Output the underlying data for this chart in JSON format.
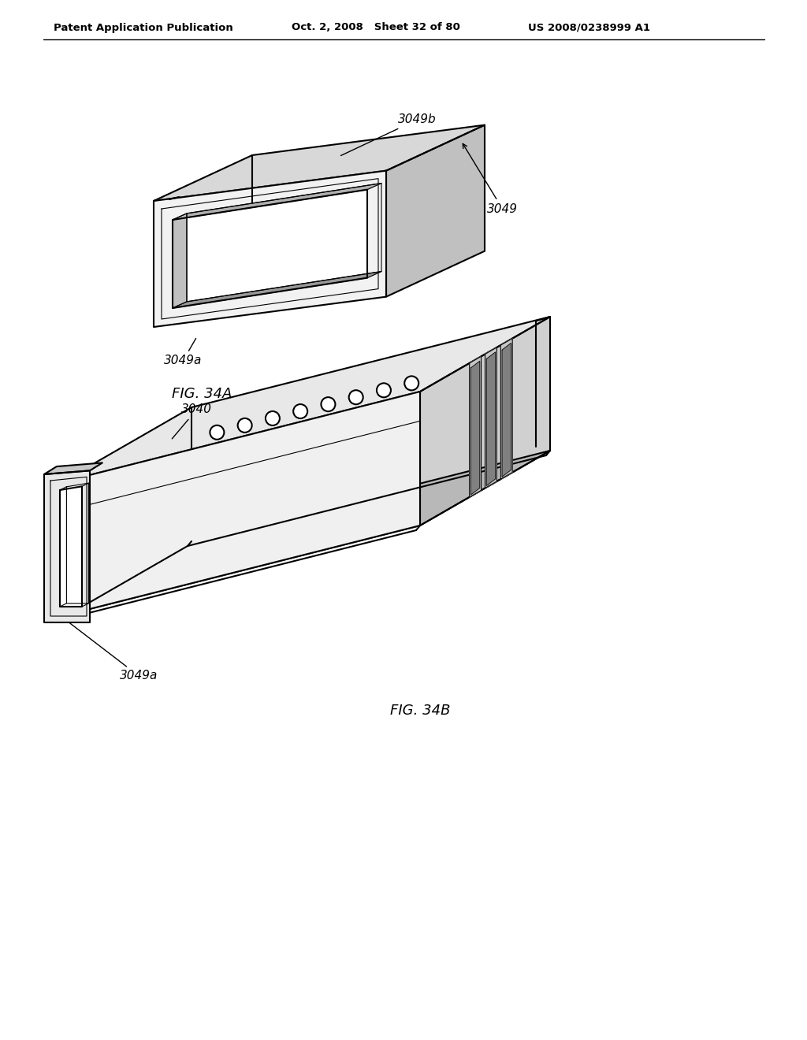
{
  "bg_color": "#ffffff",
  "header_left": "Patent Application Publication",
  "header_mid": "Oct. 2, 2008   Sheet 32 of 80",
  "header_right": "US 2008/0238999 A1",
  "fig_label_a": "FIG. 34A",
  "fig_label_b": "FIG. 34B",
  "lc": "#000000",
  "lw": 1.5,
  "lw_thin": 0.8
}
